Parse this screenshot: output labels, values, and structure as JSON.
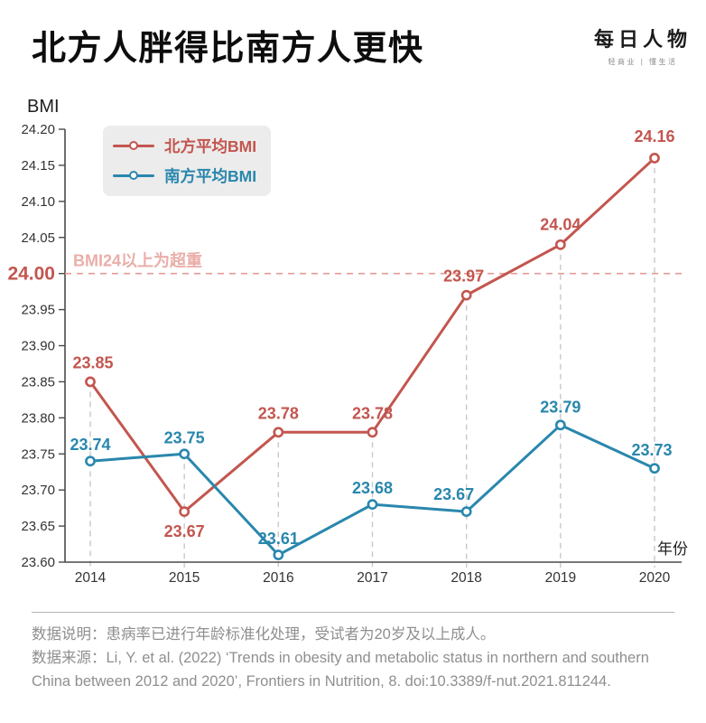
{
  "header": {
    "title": "北方人胖得比南方人更快",
    "logo": {
      "name": "每日人物",
      "tagline": "轻商业 | 懂生活"
    }
  },
  "chart_data": {
    "type": "line",
    "title": "北方人胖得比南方人更快",
    "x": [
      "2014",
      "2015",
      "2016",
      "2017",
      "2018",
      "2019",
      "2020"
    ],
    "xlabel": "年份",
    "ylabel": "BMI",
    "ylim": [
      23.6,
      24.2
    ],
    "ytick_step": 0.05,
    "yticks": [
      "23.60",
      "23.65",
      "23.70",
      "23.75",
      "23.80",
      "23.85",
      "23.90",
      "23.95",
      "24.00",
      "24.05",
      "24.10",
      "24.15",
      "24.20"
    ],
    "highlighted_ytick": "24.00",
    "grid": "vertical-dashed",
    "legend_position": "top-left",
    "series": [
      {
        "name": "北方平均BMI",
        "color": "#c3564f",
        "values": [
          23.85,
          23.67,
          23.78,
          23.78,
          23.97,
          24.04,
          24.16
        ]
      },
      {
        "name": "南方平均BMI",
        "color": "#2987ad",
        "values": [
          23.74,
          23.75,
          23.61,
          23.68,
          23.67,
          23.79,
          23.73
        ]
      }
    ],
    "reference_line": {
      "value": 24.0,
      "label": "BMI24以上为超重",
      "line_color": "#e29b94",
      "label_color": "#eaaea9",
      "tick_color": "#c3564f"
    },
    "colors": {
      "axis": "#4a4a4a",
      "tick_text": "#333333",
      "grid": "#c8c8c8",
      "footer_text": "#8f8f8f"
    }
  },
  "footer": {
    "note_label": "数据说明：",
    "note": "患病率已进行年龄标准化处理，受试者为20岁及以上成人。",
    "source_label": "数据来源：",
    "source": "Li, Y. et al. (2022) ‘Trends in obesity and metabolic status in northern and southern China between 2012 and 2020’, Frontiers in Nutrition, 8. doi:10.3389/f-nut.2021.811244."
  }
}
